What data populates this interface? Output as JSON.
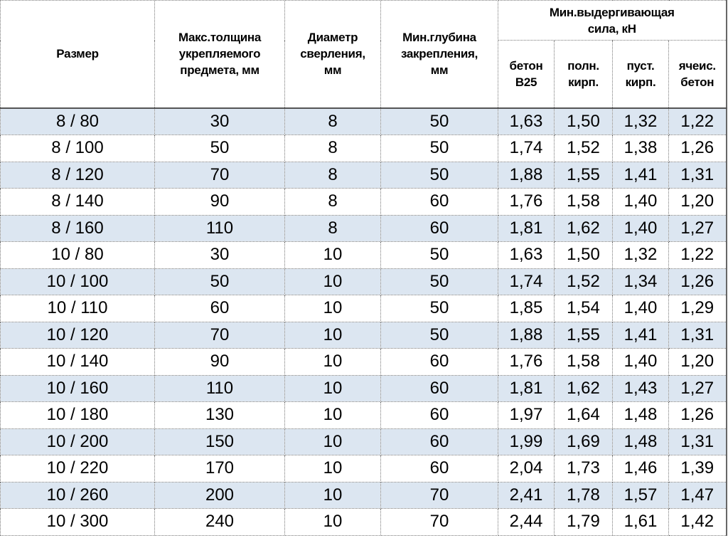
{
  "headers": {
    "size": "Размер",
    "max_thickness": [
      "Макс.толщина",
      "укрепляемого",
      "предмета, мм"
    ],
    "drill_diameter": [
      "Диаметр",
      "сверления,",
      "мм"
    ],
    "min_depth": [
      "Мин.глубина",
      "закрепления,",
      "мм"
    ],
    "pullout_group": [
      "Мин.выдергивающая",
      "сила, кН"
    ],
    "pullout_sub": [
      [
        "бетон",
        "В25"
      ],
      [
        "полн.",
        "кирп."
      ],
      [
        "пуст.",
        "кирп."
      ],
      [
        "ячеис.",
        "бетон"
      ]
    ]
  },
  "colors": {
    "row_alt": "#dce6f1"
  },
  "rows": [
    [
      "8 / 80",
      "30",
      "8",
      "50",
      "1,63",
      "1,50",
      "1,32",
      "1,22"
    ],
    [
      "8 / 100",
      "50",
      "8",
      "50",
      "1,74",
      "1,52",
      "1,38",
      "1,26"
    ],
    [
      "8 / 120",
      "70",
      "8",
      "50",
      "1,88",
      "1,55",
      "1,41",
      "1,31"
    ],
    [
      "8 / 140",
      "90",
      "8",
      "60",
      "1,76",
      "1,58",
      "1,40",
      "1,20"
    ],
    [
      "8 / 160",
      "110",
      "8",
      "60",
      "1,81",
      "1,62",
      "1,40",
      "1,27"
    ],
    [
      "10 / 80",
      "30",
      "10",
      "50",
      "1,63",
      "1,50",
      "1,32",
      "1,22"
    ],
    [
      "10 / 100",
      "50",
      "10",
      "50",
      "1,74",
      "1,52",
      "1,34",
      "1,26"
    ],
    [
      "10 / 110",
      "60",
      "10",
      "50",
      "1,85",
      "1,54",
      "1,40",
      "1,29"
    ],
    [
      "10 / 120",
      "70",
      "10",
      "50",
      "1,88",
      "1,55",
      "1,41",
      "1,31"
    ],
    [
      "10 / 140",
      "90",
      "10",
      "60",
      "1,76",
      "1,58",
      "1,40",
      "1,20"
    ],
    [
      "10 / 160",
      "110",
      "10",
      "60",
      "1,81",
      "1,62",
      "1,43",
      "1,27"
    ],
    [
      "10 / 180",
      "130",
      "10",
      "60",
      "1,97",
      "1,64",
      "1,48",
      "1,26"
    ],
    [
      "10 / 200",
      "150",
      "10",
      "60",
      "1,99",
      "1,69",
      "1,48",
      "1,31"
    ],
    [
      "10 / 220",
      "170",
      "10",
      "60",
      "2,04",
      "1,73",
      "1,46",
      "1,39"
    ],
    [
      "10 / 260",
      "200",
      "10",
      "70",
      "2,41",
      "1,78",
      "1,57",
      "1,47"
    ],
    [
      "10 / 300",
      "240",
      "10",
      "70",
      "2,44",
      "1,79",
      "1,61",
      "1,42"
    ]
  ]
}
